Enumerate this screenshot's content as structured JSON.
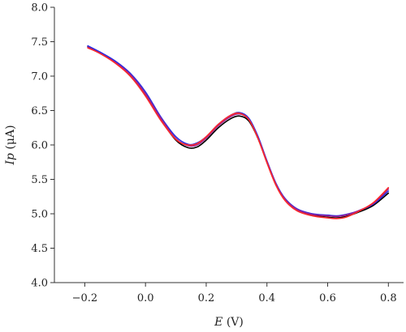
{
  "chart_data": {
    "type": "line",
    "title": "",
    "xlabel": {
      "italic": "E",
      "rest": " (V)"
    },
    "ylabel": {
      "italic": "Ip",
      "rest": " (μA)"
    },
    "xlim": [
      -0.3,
      0.85
    ],
    "ylim": [
      4.0,
      8.0
    ],
    "xticks": [
      -0.2,
      0.0,
      0.2,
      0.4,
      0.6,
      0.8
    ],
    "xtick_labels": [
      "−0.2",
      "0.0",
      "0.2",
      "0.4",
      "0.6",
      "0.8"
    ],
    "yticks": [
      4.0,
      4.5,
      5.0,
      5.5,
      6.0,
      6.5,
      7.0,
      7.5,
      8.0
    ],
    "ytick_labels": [
      "4.0",
      "4.5",
      "5.0",
      "5.5",
      "6.0",
      "6.5",
      "7.0",
      "7.5",
      "8.0"
    ],
    "grid": false,
    "legend": "none",
    "series": [
      {
        "color": "#000000",
        "x": [
          -0.19,
          -0.15,
          -0.1,
          -0.05,
          0.0,
          0.05,
          0.1,
          0.14,
          0.17,
          0.2,
          0.24,
          0.28,
          0.31,
          0.34,
          0.37,
          0.4,
          0.43,
          0.46,
          0.5,
          0.55,
          0.6,
          0.63,
          0.66,
          0.7,
          0.75,
          0.8
        ],
        "y": [
          7.43,
          7.34,
          7.2,
          7.0,
          6.72,
          6.37,
          6.07,
          5.96,
          5.97,
          6.07,
          6.25,
          6.38,
          6.42,
          6.35,
          6.1,
          5.75,
          5.42,
          5.2,
          5.05,
          4.98,
          4.95,
          4.94,
          4.96,
          5.02,
          5.12,
          5.3
        ]
      },
      {
        "color": "#2c2ce0",
        "x": [
          -0.19,
          -0.15,
          -0.1,
          -0.05,
          0.0,
          0.05,
          0.1,
          0.14,
          0.17,
          0.2,
          0.24,
          0.28,
          0.31,
          0.34,
          0.37,
          0.4,
          0.43,
          0.46,
          0.5,
          0.55,
          0.6,
          0.63,
          0.66,
          0.7,
          0.75,
          0.8
        ],
        "y": [
          7.44,
          7.35,
          7.22,
          7.04,
          6.77,
          6.41,
          6.12,
          6.01,
          6.03,
          6.12,
          6.3,
          6.43,
          6.47,
          6.39,
          6.13,
          5.77,
          5.44,
          5.22,
          5.07,
          5.0,
          4.98,
          4.97,
          4.99,
          5.04,
          5.14,
          5.33
        ]
      },
      {
        "color": "#a0208c",
        "x": [
          -0.19,
          -0.15,
          -0.1,
          -0.05,
          0.0,
          0.05,
          0.1,
          0.14,
          0.17,
          0.2,
          0.24,
          0.28,
          0.31,
          0.34,
          0.37,
          0.4,
          0.43,
          0.46,
          0.5,
          0.55,
          0.6,
          0.63,
          0.66,
          0.7,
          0.75,
          0.8
        ],
        "y": [
          7.42,
          7.33,
          7.2,
          7.02,
          6.74,
          6.39,
          6.09,
          5.99,
          6.0,
          6.1,
          6.28,
          6.41,
          6.45,
          6.37,
          6.11,
          5.76,
          5.43,
          5.21,
          5.06,
          4.99,
          4.97,
          4.96,
          4.98,
          5.04,
          5.15,
          5.36
        ]
      },
      {
        "color": "#ff2a2a",
        "x": [
          -0.19,
          -0.15,
          -0.1,
          -0.05,
          0.0,
          0.05,
          0.1,
          0.14,
          0.17,
          0.2,
          0.24,
          0.28,
          0.31,
          0.34,
          0.37,
          0.4,
          0.43,
          0.46,
          0.5,
          0.55,
          0.6,
          0.63,
          0.66,
          0.7,
          0.75,
          0.8
        ],
        "y": [
          7.41,
          7.33,
          7.19,
          7.0,
          6.71,
          6.36,
          6.08,
          6.0,
          6.02,
          6.12,
          6.3,
          6.43,
          6.46,
          6.37,
          6.1,
          5.74,
          5.41,
          5.19,
          5.04,
          4.97,
          4.94,
          4.93,
          4.95,
          5.03,
          5.16,
          5.38
        ]
      }
    ]
  }
}
